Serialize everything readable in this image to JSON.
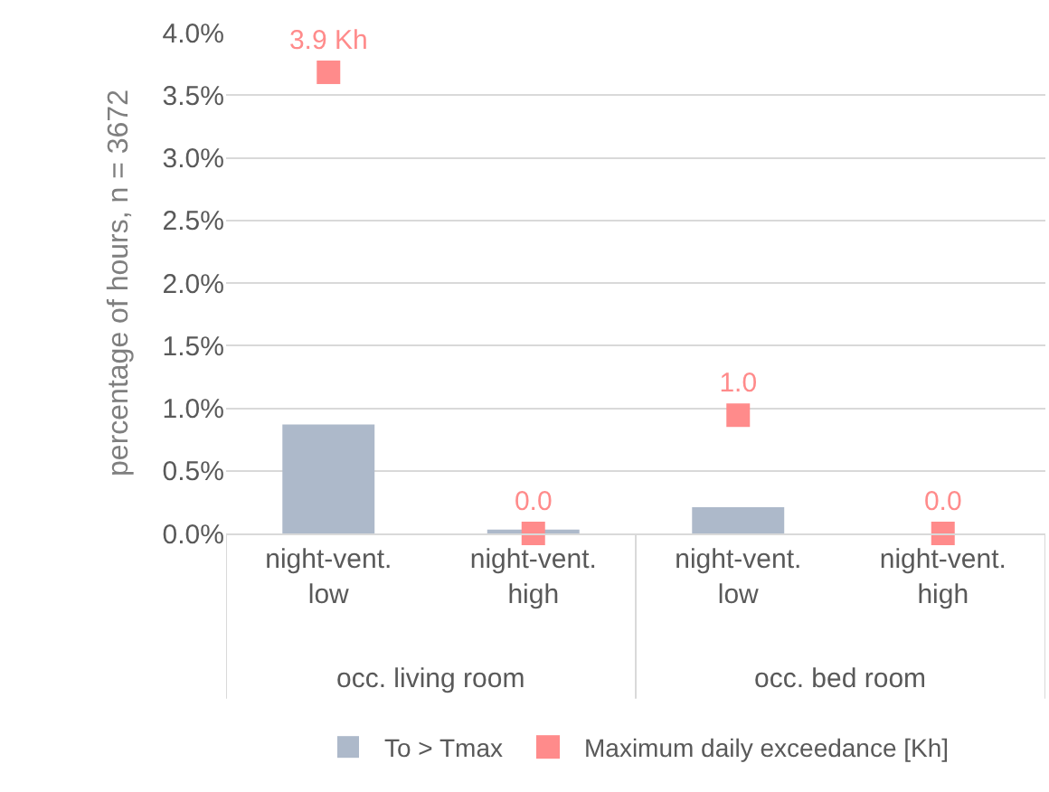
{
  "chart_data": {
    "type": "bar",
    "ylabel": "percentage of hours, n = 3672",
    "categories": [
      "night-vent.\nlow",
      "night-vent.\nhigh",
      "night-vent.\nlow",
      "night-vent.\nhigh"
    ],
    "series": [
      {
        "name": "To > Tmax",
        "color": "#adb9ca",
        "values": [
          0.87,
          0.03,
          0.21,
          0.0
        ]
      },
      {
        "name": "Maximum daily exceedance [Kh]",
        "type": "scatter",
        "axis": "y2",
        "color": "#ff8b8b",
        "marker": "square",
        "values": [
          3.9,
          0.0,
          1.0,
          0.0
        ],
        "value_labels": [
          "3.9 Kh",
          "0.0",
          "1.0",
          "0.0"
        ]
      }
    ],
    "annotations": [
      "occ. living room",
      "occ. bed room"
    ],
    "ylim": [
      0,
      4
    ],
    "yticks": [
      {
        "value": 0,
        "label": "0.0%"
      },
      {
        "value": 0.5,
        "label": "0.5%"
      },
      {
        "value": 1,
        "label": "1.0%"
      },
      {
        "value": 1.5,
        "label": "1.5%"
      },
      {
        "value": 2,
        "label": "2.0%"
      },
      {
        "value": 2.5,
        "label": "2.5%"
      },
      {
        "value": 3,
        "label": "3.0%"
      },
      {
        "value": 3.5,
        "label": "3.5%"
      },
      {
        "value": 4,
        "label": "4.0%"
      }
    ],
    "grid": "y",
    "legend": "bottom"
  }
}
